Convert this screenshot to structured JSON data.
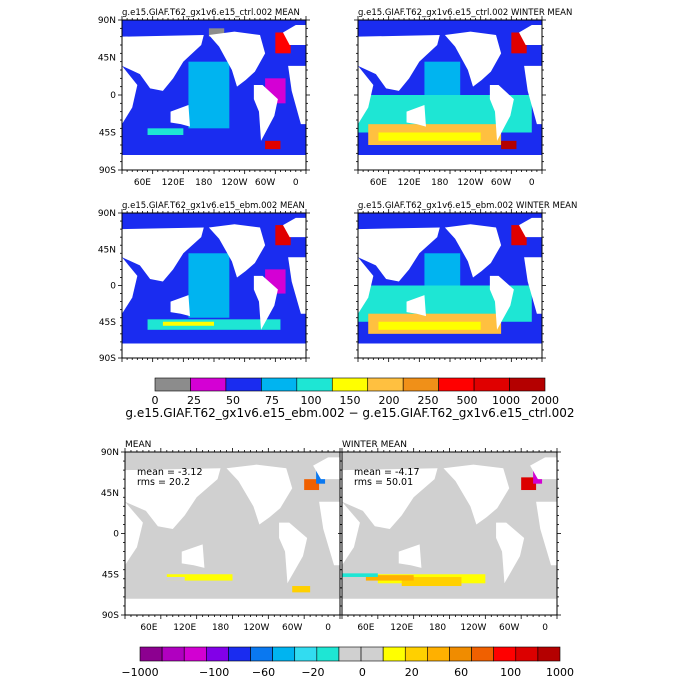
{
  "chart_data": [
    {
      "type": "heatmap",
      "title": "g.e15.GIAF.T62_gx1v6.e15_ctrl.002 MEAN",
      "ylabels": [
        "90N",
        "45N",
        "0",
        "45S",
        "90S"
      ],
      "xlabels": [
        "60E",
        "120E",
        "180",
        "120W",
        "60W",
        "0"
      ],
      "shows_y_labels": true,
      "shows_x_labels": true,
      "regions": [
        {
          "level": 2,
          "lon": [
            45,
            100
          ],
          "lat": [
            -40,
            5
          ]
        },
        {
          "level": 3,
          "lon": [
            150,
            230
          ],
          "lat": [
            -40,
            40
          ]
        },
        {
          "level": 2,
          "lon": [
            240,
            270
          ],
          "lat": [
            -5,
            25
          ]
        },
        {
          "level": 1,
          "lon": [
            300,
            340
          ],
          "lat": [
            -10,
            20
          ]
        },
        {
          "level": 4,
          "lon": [
            70,
            140
          ],
          "lat": [
            -48,
            -40
          ]
        },
        {
          "level": 9,
          "lon": [
            300,
            330
          ],
          "lat": [
            -65,
            -55
          ]
        },
        {
          "level": 8,
          "lon": [
            320,
            350
          ],
          "lat": [
            50,
            75
          ]
        },
        {
          "level": 0,
          "lon": [
            190,
            220
          ],
          "lat": [
            70,
            80
          ]
        }
      ]
    },
    {
      "type": "heatmap",
      "title": "g.e15.GIAF.T62_gx1v6.e15_ctrl.002 WINTER MEAN",
      "ylabels": [
        "90N",
        "45N",
        "0",
        "45S",
        "90S"
      ],
      "xlabels": [
        "60E",
        "120E",
        "180",
        "120W",
        "60W",
        "0"
      ],
      "shows_y_labels": false,
      "shows_x_labels": true,
      "regions": [
        {
          "level": 4,
          "lon": [
            20,
            360
          ],
          "lat": [
            -45,
            0
          ]
        },
        {
          "level": 6,
          "lon": [
            40,
            300
          ],
          "lat": [
            -60,
            -35
          ]
        },
        {
          "level": 5,
          "lon": [
            60,
            260
          ],
          "lat": [
            -55,
            -45
          ]
        },
        {
          "level": 3,
          "lon": [
            150,
            220
          ],
          "lat": [
            0,
            40
          ]
        },
        {
          "level": 9,
          "lon": [
            320,
            350
          ],
          "lat": [
            50,
            75
          ]
        },
        {
          "level": 10,
          "lon": [
            300,
            330
          ],
          "lat": [
            -65,
            -55
          ]
        }
      ]
    },
    {
      "type": "heatmap",
      "title": "g.e15.GIAF.T62_gx1v6.e15_ebm.002 MEAN",
      "ylabels": [
        "90N",
        "45N",
        "0",
        "45S",
        "90S"
      ],
      "xlabels": [
        "60E",
        "120E",
        "180",
        "120W",
        "60W",
        "0"
      ],
      "shows_y_labels": true,
      "shows_x_labels": false,
      "regions": [
        {
          "level": 2,
          "lon": [
            45,
            100
          ],
          "lat": [
            -40,
            5
          ]
        },
        {
          "level": 3,
          "lon": [
            150,
            230
          ],
          "lat": [
            -40,
            40
          ]
        },
        {
          "level": 4,
          "lon": [
            70,
            330
          ],
          "lat": [
            -55,
            -42
          ]
        },
        {
          "level": 5,
          "lon": [
            100,
            200
          ],
          "lat": [
            -50,
            -45
          ]
        },
        {
          "level": 1,
          "lon": [
            300,
            340
          ],
          "lat": [
            -10,
            20
          ]
        },
        {
          "level": 9,
          "lon": [
            320,
            350
          ],
          "lat": [
            50,
            75
          ]
        }
      ]
    },
    {
      "type": "heatmap",
      "title": "g.e15.GIAF.T62_gx1v6.e15_ebm.002 WINTER MEAN",
      "ylabels": [
        "90N",
        "45N",
        "0",
        "45S",
        "90S"
      ],
      "xlabels": [
        "60E",
        "120E",
        "180",
        "120W",
        "60W",
        "0"
      ],
      "shows_y_labels": false,
      "shows_x_labels": false,
      "regions": [
        {
          "level": 4,
          "lon": [
            20,
            360
          ],
          "lat": [
            -45,
            0
          ]
        },
        {
          "level": 6,
          "lon": [
            40,
            300
          ],
          "lat": [
            -60,
            -35
          ]
        },
        {
          "level": 5,
          "lon": [
            60,
            260
          ],
          "lat": [
            -55,
            -45
          ]
        },
        {
          "level": 3,
          "lon": [
            150,
            220
          ],
          "lat": [
            0,
            40
          ]
        },
        {
          "level": 9,
          "lon": [
            320,
            350
          ],
          "lat": [
            50,
            75
          ]
        }
      ]
    },
    {
      "type": "heatmap",
      "title": "MEAN",
      "ylabels": [
        "90N",
        "45N",
        "0",
        "45S",
        "90S"
      ],
      "xlabels": [
        "60E",
        "120E",
        "180",
        "120W",
        "60W",
        "0"
      ],
      "shows_y_labels": true,
      "shows_x_labels": true,
      "annotations": [
        "mean = -3.12",
        "rms = 20.2"
      ],
      "regions": [
        {
          "level": 11,
          "lon": [
            90,
            200
          ],
          "lat": [
            -52,
            -45
          ]
        },
        {
          "level": 10,
          "lon": [
            200,
            280
          ],
          "lat": [
            -58,
            -50
          ]
        },
        {
          "level": 9,
          "lon": [
            20,
            120
          ],
          "lat": [
            -52,
            -48
          ]
        },
        {
          "level": 12,
          "lon": [
            300,
            330
          ],
          "lat": [
            -65,
            -58
          ]
        },
        {
          "level": 15,
          "lon": [
            320,
            345
          ],
          "lat": [
            48,
            60
          ]
        },
        {
          "level": 5,
          "lon": [
            340,
            355
          ],
          "lat": [
            55,
            70
          ]
        }
      ]
    },
    {
      "type": "heatmap",
      "title": "WINTER MEAN",
      "ylabels": [
        "90N",
        "45N",
        "0",
        "45S",
        "90S"
      ],
      "xlabels": [
        "60E",
        "120E",
        "180",
        "120W",
        "60W",
        "0"
      ],
      "shows_y_labels": false,
      "shows_x_labels": true,
      "annotations": [
        "mean = -4.17",
        "rms = 50.01"
      ],
      "regions": [
        {
          "level": 11,
          "lon": [
            80,
            260
          ],
          "lat": [
            -55,
            -45
          ]
        },
        {
          "level": 12,
          "lon": [
            120,
            220
          ],
          "lat": [
            -58,
            -48
          ]
        },
        {
          "level": 13,
          "lon": [
            60,
            140
          ],
          "lat": [
            -52,
            -46
          ]
        },
        {
          "level": 8,
          "lon": [
            20,
            80
          ],
          "lat": [
            -48,
            -44
          ]
        },
        {
          "level": 17,
          "lon": [
            320,
            345
          ],
          "lat": [
            48,
            62
          ]
        },
        {
          "level": 2,
          "lon": [
            340,
            355
          ],
          "lat": [
            55,
            70
          ]
        }
      ]
    }
  ],
  "colorbars": [
    {
      "title": "g.e15.GIAF.T62_gx1v6.e15_ebm.002 − g.e15.GIAF.T62_gx1v6.e15_ctrl.002",
      "labels": [
        "0",
        "25",
        "50",
        "75",
        "100",
        "150",
        "200",
        "250",
        "500",
        "1000",
        "2000"
      ],
      "colors": [
        "#8c8c8c",
        "#d400d4",
        "#1a2cf0",
        "#00b4f0",
        "#1ee6d4",
        "#ffff00",
        "#ffc040",
        "#f09018",
        "#ff0000",
        "#e00000",
        "#b40000"
      ]
    },
    {
      "labels": [
        "−1000",
        "",
        "",
        "−100",
        "",
        "−60",
        "",
        "−20",
        "",
        "0",
        "",
        "20",
        "",
        "60",
        "",
        "100",
        "",
        "1000"
      ],
      "colors": [
        "#8c0090",
        "#b000c0",
        "#d200d2",
        "#8200e8",
        "#1a2cf0",
        "#0a78f0",
        "#00b4f0",
        "#32dcf0",
        "#1ee6d4",
        "#d0d0d0",
        "#d0d0d0",
        "#ffff00",
        "#ffd000",
        "#ffb000",
        "#f08c00",
        "#f06000",
        "#ff0000",
        "#dc0000",
        "#b40000"
      ]
    }
  ],
  "colors": {
    "land": "#ffffff",
    "ocean_base": "#1a2cf0",
    "diff_base": "#d0d0d0",
    "frame": "#000000"
  }
}
